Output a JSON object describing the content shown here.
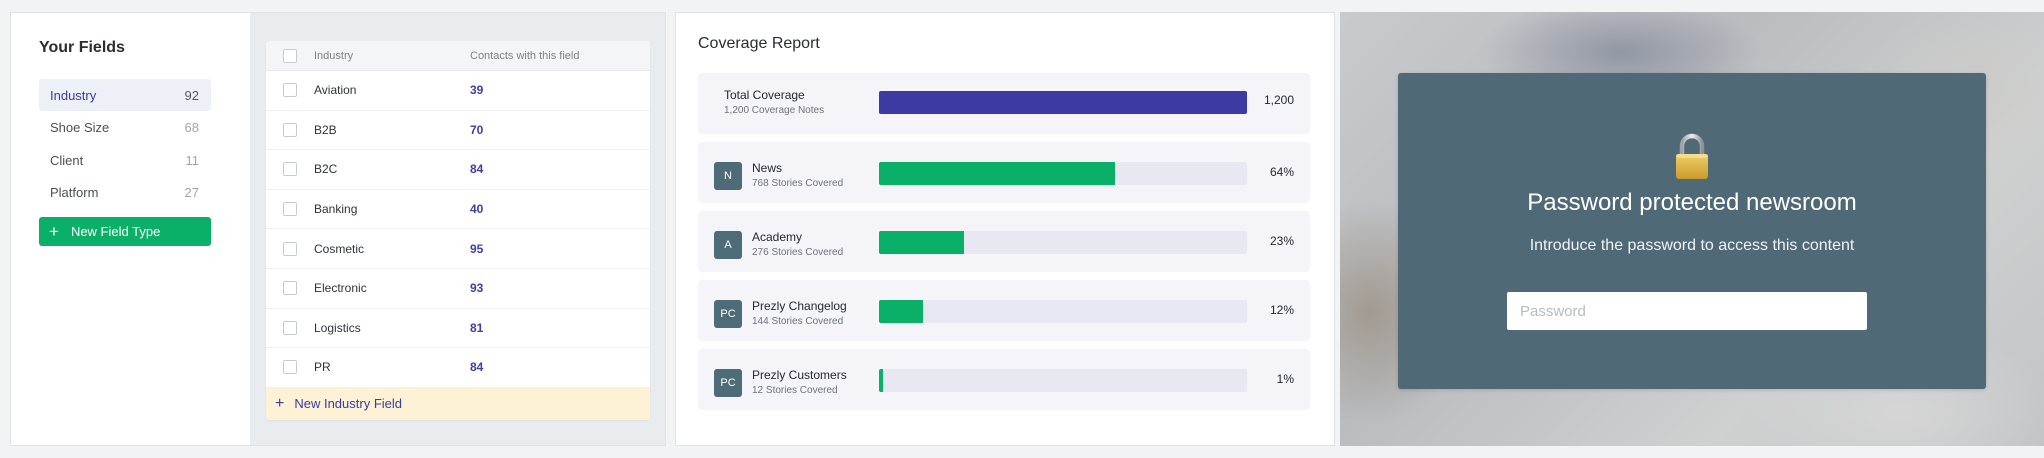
{
  "fields_panel": {
    "title": "Your Fields",
    "fields": [
      {
        "label": "Industry",
        "count": "92",
        "active": true
      },
      {
        "label": "Shoe Size",
        "count": "68",
        "active": false
      },
      {
        "label": "Client",
        "count": "11",
        "active": false
      },
      {
        "label": "Platform",
        "count": "27",
        "active": false
      }
    ],
    "new_field_type_label": "New Field Type",
    "table": {
      "col_industry": "Industry",
      "col_contacts": "Contacts with this field",
      "rows": [
        {
          "name": "Aviation",
          "count": "39"
        },
        {
          "name": "B2B",
          "count": "70"
        },
        {
          "name": "B2C",
          "count": "84"
        },
        {
          "name": "Banking",
          "count": "40"
        },
        {
          "name": "Cosmetic",
          "count": "95"
        },
        {
          "name": "Electronic",
          "count": "93"
        },
        {
          "name": "Logistics",
          "count": "81"
        },
        {
          "name": "PR",
          "count": "84"
        }
      ],
      "new_industry_field_label": "New Industry Field"
    }
  },
  "coverage_panel": {
    "title": "Coverage Report",
    "items": [
      {
        "avatar": "",
        "name": "Total Coverage",
        "subtitle": "1,200 Coverage Notes",
        "value": "1,200",
        "fraction": 1.0,
        "color": "#3d3ba3"
      },
      {
        "avatar": "N",
        "name": "News",
        "subtitle": "768 Stories Covered",
        "value": "64%",
        "fraction": 0.64,
        "color": "#0ab067"
      },
      {
        "avatar": "A",
        "name": "Academy",
        "subtitle": "276 Stories Covered",
        "value": "23%",
        "fraction": 0.23,
        "color": "#0ab067"
      },
      {
        "avatar": "PC",
        "name": "Prezly Changelog",
        "subtitle": "144 Stories Covered",
        "value": "12%",
        "fraction": 0.12,
        "color": "#0ab067"
      },
      {
        "avatar": "PC",
        "name": "Prezly Customers",
        "subtitle": "12 Stories Covered",
        "value": "1%",
        "fraction": 0.01,
        "color": "#0ab067"
      }
    ]
  },
  "password_panel": {
    "title": "Password protected newsroom",
    "subtitle": "Introduce the password to access this content",
    "input_placeholder": "Password",
    "card_color": "#4f6977",
    "lock_icon": "lock-icon"
  }
}
